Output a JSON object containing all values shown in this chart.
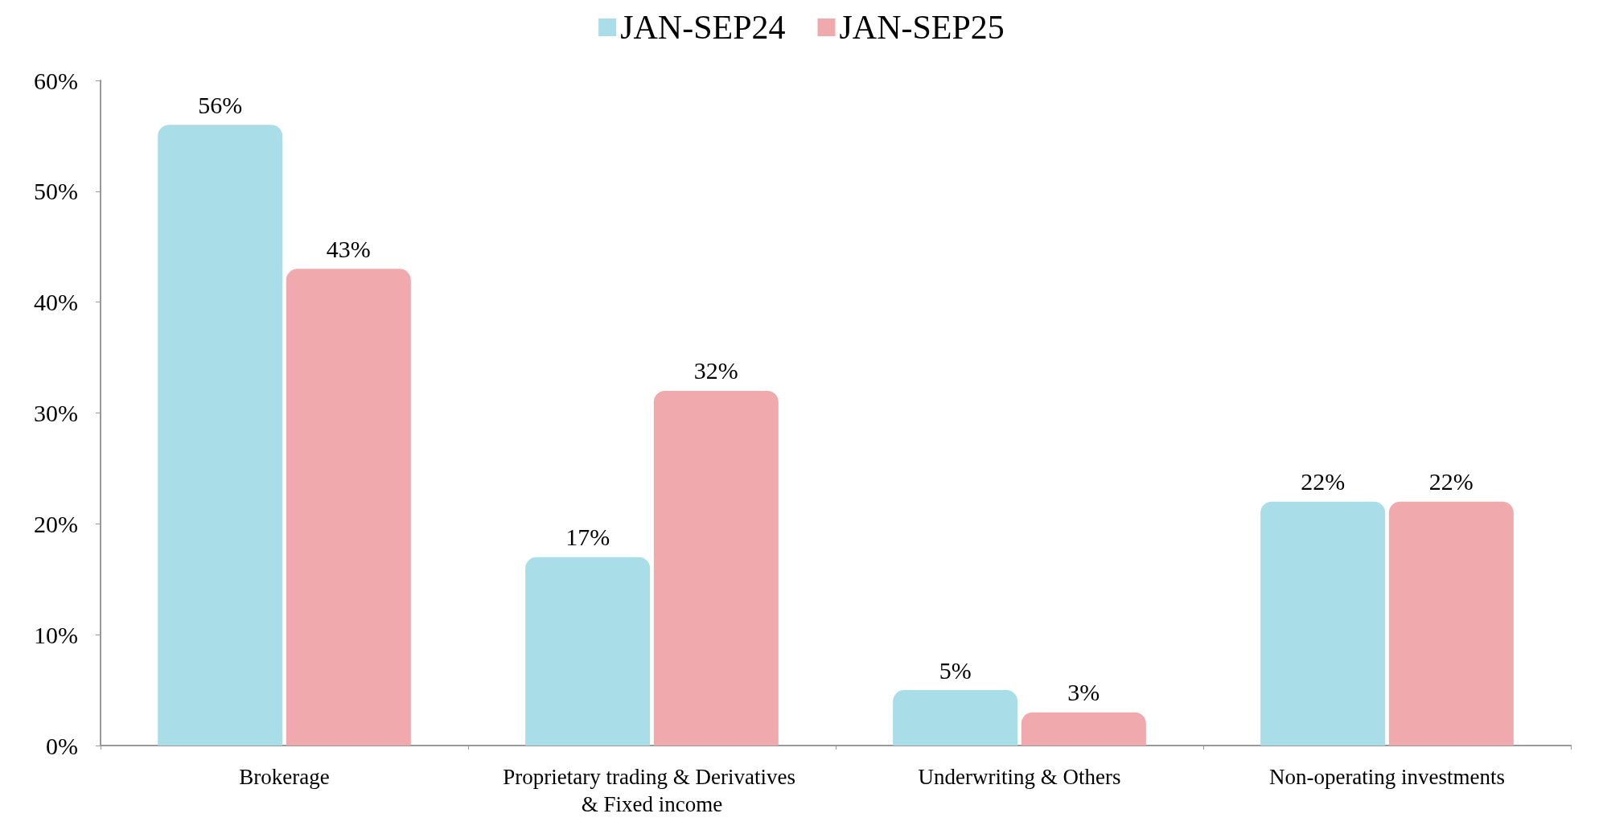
{
  "chart_data": {
    "type": "bar",
    "categories": [
      "Brokerage",
      "Proprietary trading & Derivatives & Fixed income",
      "Underwriting & Others",
      "Non-operating investments"
    ],
    "series": [
      {
        "name": "JAN-SEP24",
        "color": "#a9dde8",
        "values": [
          56,
          17,
          5,
          22
        ],
        "value_labels": [
          "56%",
          "17%",
          "5%",
          "22%"
        ]
      },
      {
        "name": "JAN-SEP25",
        "color": "#f0a9ac",
        "values": [
          43,
          32,
          3,
          22
        ],
        "value_labels": [
          "43%",
          "32%",
          "3%",
          "22%"
        ]
      }
    ],
    "ylim": [
      0,
      60
    ],
    "yticks": [
      {
        "value": 0,
        "label": "0%"
      },
      {
        "value": 10,
        "label": "10%"
      },
      {
        "value": 20,
        "label": "20%"
      },
      {
        "value": 30,
        "label": "30%"
      },
      {
        "value": 40,
        "label": "40%"
      },
      {
        "value": 50,
        "label": "50%"
      },
      {
        "value": 60,
        "label": "60%"
      }
    ],
    "grid": false,
    "legend": "top"
  }
}
